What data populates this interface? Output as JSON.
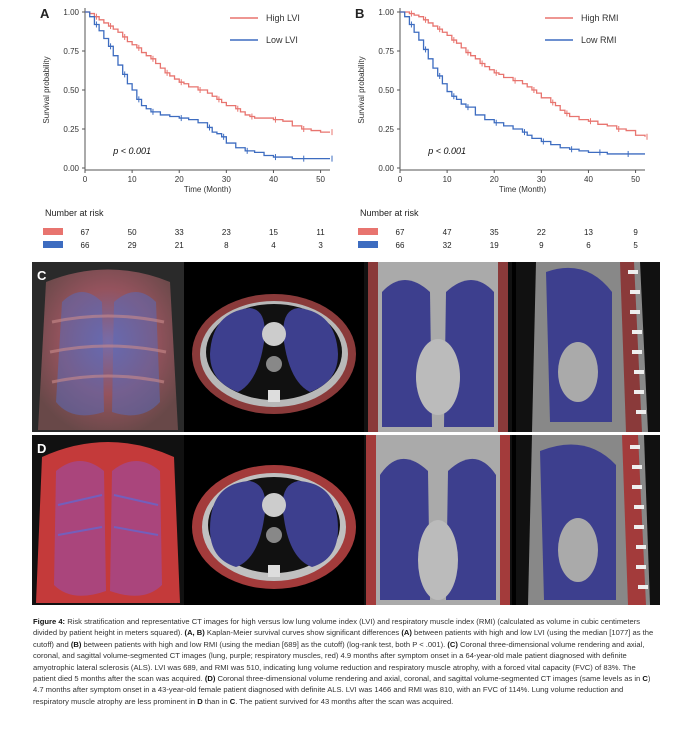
{
  "panels": {
    "A": "A",
    "B": "B",
    "C": "C",
    "D": "D"
  },
  "chart_data": [
    {
      "type": "line",
      "panel": "A",
      "ylabel": "Survival probability",
      "xlabel": "Time (Month)",
      "xlim": [
        0,
        52
      ],
      "ylim": [
        0,
        1
      ],
      "xticks": [
        "0",
        "10",
        "20",
        "30",
        "40",
        "50"
      ],
      "yticks": [
        "0.00",
        "0.25",
        "0.50",
        "0.75",
        "1.00"
      ],
      "grid": false,
      "legend": "top-right",
      "pvalue": "p < 0.001",
      "series": [
        {
          "name": "High LVI",
          "color": "#e8746f",
          "x": [
            0,
            1,
            2,
            3,
            4,
            5,
            6,
            7,
            8,
            9,
            10,
            11,
            12,
            13,
            14,
            15,
            16,
            17,
            18,
            19,
            20,
            21,
            22,
            24,
            26,
            27,
            28,
            29,
            30,
            32,
            33,
            34,
            35,
            36,
            38,
            40,
            42,
            44,
            46,
            48,
            50,
            52
          ],
          "y": [
            1,
            0.99,
            0.97,
            0.95,
            0.93,
            0.91,
            0.89,
            0.87,
            0.84,
            0.81,
            0.79,
            0.77,
            0.74,
            0.72,
            0.7,
            0.67,
            0.64,
            0.61,
            0.59,
            0.57,
            0.55,
            0.54,
            0.52,
            0.5,
            0.48,
            0.46,
            0.44,
            0.42,
            0.4,
            0.38,
            0.36,
            0.34,
            0.33,
            0.32,
            0.32,
            0.31,
            0.3,
            0.27,
            0.25,
            0.24,
            0.23,
            0.23
          ]
        },
        {
          "name": "Low LVI",
          "color": "#3d6cc0",
          "x": [
            0,
            1,
            2,
            3,
            4,
            5,
            6,
            7,
            8,
            9,
            10,
            11,
            12,
            13,
            14,
            16,
            18,
            20,
            22,
            24,
            26,
            27,
            28,
            29,
            30,
            32,
            34,
            36,
            38,
            40,
            42,
            44,
            46,
            48,
            50,
            52
          ],
          "y": [
            1,
            0.97,
            0.92,
            0.88,
            0.83,
            0.78,
            0.72,
            0.66,
            0.6,
            0.54,
            0.5,
            0.44,
            0.4,
            0.38,
            0.36,
            0.34,
            0.33,
            0.32,
            0.31,
            0.29,
            0.26,
            0.23,
            0.22,
            0.2,
            0.16,
            0.13,
            0.11,
            0.1,
            0.08,
            0.07,
            0.07,
            0.06,
            0.06,
            0.06,
            0.06,
            0.06
          ]
        }
      ],
      "risk_table": {
        "title": "Number at risk",
        "times": [
          0,
          10,
          20,
          30,
          40,
          50
        ],
        "rows": [
          {
            "color": "#e8746f",
            "values": [
              "67",
              "50",
              "33",
              "23",
              "15",
              "11"
            ]
          },
          {
            "color": "#3d6cc0",
            "values": [
              "66",
              "29",
              "21",
              "8",
              "4",
              "3"
            ]
          }
        ]
      }
    },
    {
      "type": "line",
      "panel": "B",
      "ylabel": "Survival probability",
      "xlabel": "Time (Month)",
      "xlim": [
        0,
        52
      ],
      "ylim": [
        0,
        1
      ],
      "xticks": [
        "0",
        "10",
        "20",
        "30",
        "40",
        "50"
      ],
      "yticks": [
        "0.00",
        "0.25",
        "0.50",
        "0.75",
        "1.00"
      ],
      "grid": false,
      "legend": "top-right",
      "pvalue": "p < 0.001",
      "series": [
        {
          "name": "High RMI",
          "color": "#e8746f",
          "x": [
            0,
            1,
            2,
            3,
            4,
            5,
            6,
            7,
            8,
            9,
            10,
            11,
            12,
            13,
            14,
            15,
            16,
            17,
            18,
            19,
            20,
            21,
            22,
            24,
            26,
            27,
            28,
            29,
            30,
            32,
            33,
            34,
            35,
            36,
            38,
            40,
            42,
            44,
            46,
            48,
            50,
            52
          ],
          "y": [
            1,
            1,
            0.99,
            0.98,
            0.97,
            0.95,
            0.93,
            0.91,
            0.89,
            0.87,
            0.85,
            0.82,
            0.8,
            0.77,
            0.74,
            0.72,
            0.7,
            0.67,
            0.65,
            0.63,
            0.61,
            0.6,
            0.58,
            0.56,
            0.54,
            0.52,
            0.5,
            0.48,
            0.45,
            0.42,
            0.4,
            0.37,
            0.35,
            0.33,
            0.31,
            0.3,
            0.28,
            0.27,
            0.25,
            0.24,
            0.21,
            0.2
          ]
        },
        {
          "name": "Low RMI",
          "color": "#3d6cc0",
          "x": [
            0,
            1,
            2,
            3,
            4,
            5,
            6,
            7,
            8,
            9,
            10,
            11,
            12,
            13,
            14,
            16,
            18,
            20,
            22,
            24,
            26,
            27,
            28,
            30,
            32,
            34,
            36,
            38,
            40,
            42,
            44,
            46,
            48,
            50,
            52
          ],
          "y": [
            1,
            0.97,
            0.92,
            0.87,
            0.82,
            0.76,
            0.7,
            0.64,
            0.59,
            0.54,
            0.49,
            0.46,
            0.44,
            0.41,
            0.39,
            0.34,
            0.31,
            0.29,
            0.27,
            0.25,
            0.23,
            0.21,
            0.19,
            0.17,
            0.15,
            0.13,
            0.12,
            0.11,
            0.1,
            0.1,
            0.09,
            0.09,
            0.09,
            0.09,
            0.09
          ]
        }
      ],
      "risk_table": {
        "title": "Number at risk",
        "times": [
          0,
          10,
          20,
          30,
          40,
          50
        ],
        "rows": [
          {
            "color": "#e8746f",
            "values": [
              "67",
              "47",
              "35",
              "22",
              "13",
              "9"
            ]
          },
          {
            "color": "#3d6cc0",
            "values": [
              "66",
              "32",
              "19",
              "9",
              "6",
              "5"
            ]
          }
        ]
      }
    }
  ],
  "caption": {
    "label": "Figure 4:",
    "t1": " Risk stratification and representative CT images for high versus low lung volume index (LVI) and respiratory muscle index (RMI) (calculated as volume in cubic centimeters divided by patient height in meters squared). ",
    "b1": "(A, B)",
    "t2": " Kaplan-Meier survival curves show significant differences ",
    "b2": "(A)",
    "t3": " between patients with high and low LVI (using the median [1077] as the cutoff) and ",
    "b3": "(B)",
    "t4": " between patients with high and low RMI (using the median [689] as the cutoff) (log-rank test, both P < .001). ",
    "b4": "(C)",
    "t5": " Coronal three-dimensional volume rendering and axial, coronal, and sagittal volume-segmented CT images (lung, purple; respiratory muscles, red) 4.9 months after symptom onset in a 64-year-old male patient diagnosed with definite amyotrophic lateral sclerosis (ALS). LVI was 689, and RMI was 510, indicating lung volume reduction and respiratory muscle atrophy, with a forced vital capacity (FVC) of 83%. The patient died 5 months after the scan was acquired. ",
    "b5": "(D)",
    "t6": " Coronal three-dimensional volume rendering and axial, coronal, and sagittal volume-segmented CT images (same levels as in ",
    "b6": "C",
    "t7": ") 4.7 months after symptom onset in a 43-year-old female patient diagnosed with definite ALS. LVI was 1466 and RMI was 810, with an FVC of 114%. Lung volume reduction and respiratory muscle atrophy are less prominent in ",
    "b7": "D",
    "t8": " than in ",
    "b8": "C",
    "t9": ". The patient survived for 43 months after the scan was acquired."
  }
}
